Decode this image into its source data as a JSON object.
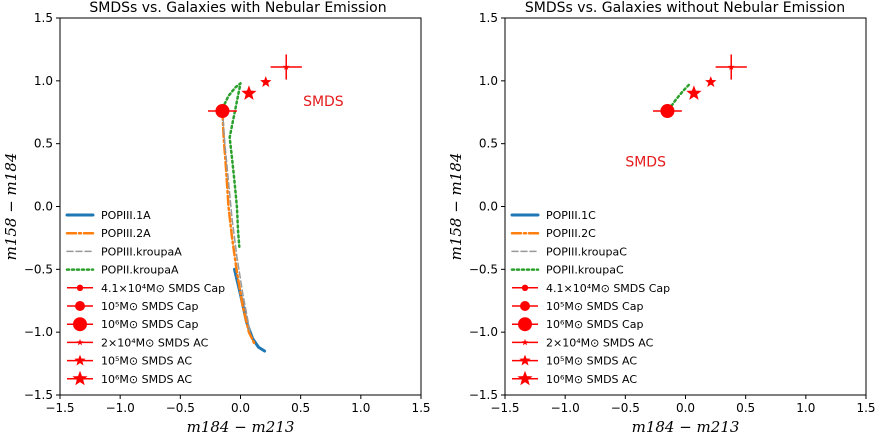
{
  "colors": {
    "blue": "#1f77b4",
    "orange": "#ff7f0e",
    "gray": "#999999",
    "green": "#2ca02c",
    "red": "#ff0000",
    "annotation": "#e41a1c"
  },
  "chart_data": [
    {
      "type": "line",
      "title": "SMDSs vs. Galaxies with Nebular Emission",
      "xlabel": "m184 − m213",
      "ylabel": "m158 − m184",
      "xlim": [
        -1.5,
        1.5
      ],
      "ylim": [
        -1.5,
        1.5
      ],
      "xticks": [
        "−1.5",
        "−1.0",
        "−0.5",
        "0.0",
        "0.5",
        "1.0",
        "1.5"
      ],
      "yticks": [
        "−1.5",
        "−1.0",
        "−0.5",
        "0.0",
        "0.5",
        "1.0",
        "1.5"
      ],
      "grid": false,
      "legend_position": "lower-left",
      "annotation": {
        "text": "SMDS",
        "x": 0.52,
        "y": 0.8
      },
      "series": [
        {
          "name": "POPIII.1A",
          "style": "solid",
          "color": "#1f77b4",
          "x": [
            -0.05,
            0.0,
            0.05,
            0.1,
            0.15,
            0.2
          ],
          "y": [
            -0.5,
            -0.7,
            -0.92,
            -1.05,
            -1.12,
            -1.15
          ]
        },
        {
          "name": "POPIII.2A",
          "style": "dashdot",
          "color": "#ff7f0e",
          "x": [
            -0.15,
            -0.14,
            -0.12,
            -0.1,
            -0.07,
            -0.03,
            0.02,
            0.07,
            0.12
          ],
          "y": [
            0.76,
            0.55,
            0.3,
            0.0,
            -0.25,
            -0.52,
            -0.8,
            -1.0,
            -1.1
          ]
        },
        {
          "name": "POPIII.kroupaA",
          "style": "dashed",
          "color": "#999999",
          "x": [
            -0.15,
            -0.13,
            -0.1,
            -0.07,
            -0.03,
            0.02,
            0.08
          ],
          "y": [
            0.76,
            0.5,
            0.2,
            -0.1,
            -0.4,
            -0.7,
            -1.0
          ]
        },
        {
          "name": "POPII.kroupaA",
          "style": "dotted",
          "color": "#2ca02c",
          "x": [
            -0.15,
            -0.1,
            -0.04,
            0.0,
            -0.09,
            -0.07,
            -0.05,
            -0.03,
            -0.02,
            -0.01
          ],
          "y": [
            0.78,
            0.88,
            0.95,
            0.98,
            0.55,
            0.38,
            0.2,
            0.0,
            -0.2,
            -0.32
          ]
        },
        {
          "name": "4.1×10⁴M⊙ SMDS Cap",
          "marker": "circle-small",
          "color": "#ff0000",
          "x": [
            -0.15
          ],
          "y": [
            0.76
          ],
          "xerr": 0.12,
          "yerr": 0.05
        },
        {
          "name": "10⁵M⊙ SMDS Cap",
          "marker": "circle-medium",
          "color": "#ff0000",
          "x": [
            -0.15
          ],
          "y": [
            0.76
          ]
        },
        {
          "name": "10⁶M⊙ SMDS Cap",
          "marker": "circle-large",
          "color": "#ff0000",
          "x": [
            -0.15
          ],
          "y": [
            0.76
          ]
        },
        {
          "name": "2×10⁴M⊙ SMDS AC",
          "marker": "star-small",
          "color": "#ff0000",
          "x": [
            0.38
          ],
          "y": [
            1.11
          ],
          "xerr": 0.13,
          "yerr": 0.1
        },
        {
          "name": "10⁵M⊙ SMDS AC",
          "marker": "star-medium",
          "color": "#ff0000",
          "x": [
            0.21
          ],
          "y": [
            0.99
          ]
        },
        {
          "name": "10⁶M⊙ SMDS AC",
          "marker": "star-large",
          "color": "#ff0000",
          "x": [
            0.07
          ],
          "y": [
            0.9
          ]
        }
      ]
    },
    {
      "type": "line",
      "title": "SMDSs vs. Galaxies without Nebular Emission",
      "xlabel": "m184 − m213",
      "ylabel": "m158 − m184",
      "xlim": [
        -1.5,
        1.5
      ],
      "ylim": [
        -1.5,
        1.5
      ],
      "xticks": [
        "−1.5",
        "−1.0",
        "−0.5",
        "0.0",
        "0.5",
        "1.0",
        "1.5"
      ],
      "yticks": [
        "−1.5",
        "−1.0",
        "−0.5",
        "0.0",
        "0.5",
        "1.0",
        "1.5"
      ],
      "grid": false,
      "legend_position": "lower-left",
      "annotation": {
        "text": "SMDS",
        "x": -0.5,
        "y": 0.32
      },
      "series": [
        {
          "name": "POPIII.1C",
          "style": "solid",
          "color": "#1f77b4",
          "x": [
            -0.16,
            -0.12
          ],
          "y": [
            0.74,
            0.75
          ]
        },
        {
          "name": "POPIII.2C",
          "style": "dashdot",
          "color": "#ff7f0e",
          "x": [
            -0.16,
            -0.11
          ],
          "y": [
            0.74,
            0.76
          ]
        },
        {
          "name": "POPIII.kroupaC",
          "style": "dashed",
          "color": "#999999",
          "x": [
            -0.16,
            -0.1
          ],
          "y": [
            0.73,
            0.75
          ]
        },
        {
          "name": "POPII.kroupaC",
          "style": "dotted",
          "color": "#2ca02c",
          "x": [
            -0.14,
            -0.08,
            -0.02,
            0.03
          ],
          "y": [
            0.77,
            0.85,
            0.92,
            0.97
          ]
        },
        {
          "name": "4.1×10⁴M⊙ SMDS Cap",
          "marker": "circle-small",
          "color": "#ff0000",
          "x": [
            -0.15
          ],
          "y": [
            0.76
          ],
          "xerr": 0.12,
          "yerr": 0.04
        },
        {
          "name": "10⁵M⊙ SMDS Cap",
          "marker": "circle-medium",
          "color": "#ff0000",
          "x": [
            -0.15
          ],
          "y": [
            0.76
          ]
        },
        {
          "name": "10⁶M⊙ SMDS Cap",
          "marker": "circle-large",
          "color": "#ff0000",
          "x": [
            -0.15
          ],
          "y": [
            0.76
          ]
        },
        {
          "name": "2×10⁴M⊙ SMDS AC",
          "marker": "star-small",
          "color": "#ff0000",
          "x": [
            0.38
          ],
          "y": [
            1.11
          ],
          "xerr": 0.13,
          "yerr": 0.1
        },
        {
          "name": "10⁵M⊙ SMDS AC",
          "marker": "star-medium",
          "color": "#ff0000",
          "x": [
            0.21
          ],
          "y": [
            0.99
          ]
        },
        {
          "name": "10⁶M⊙ SMDS AC",
          "marker": "star-large",
          "color": "#ff0000",
          "x": [
            0.07
          ],
          "y": [
            0.9
          ]
        }
      ]
    }
  ]
}
